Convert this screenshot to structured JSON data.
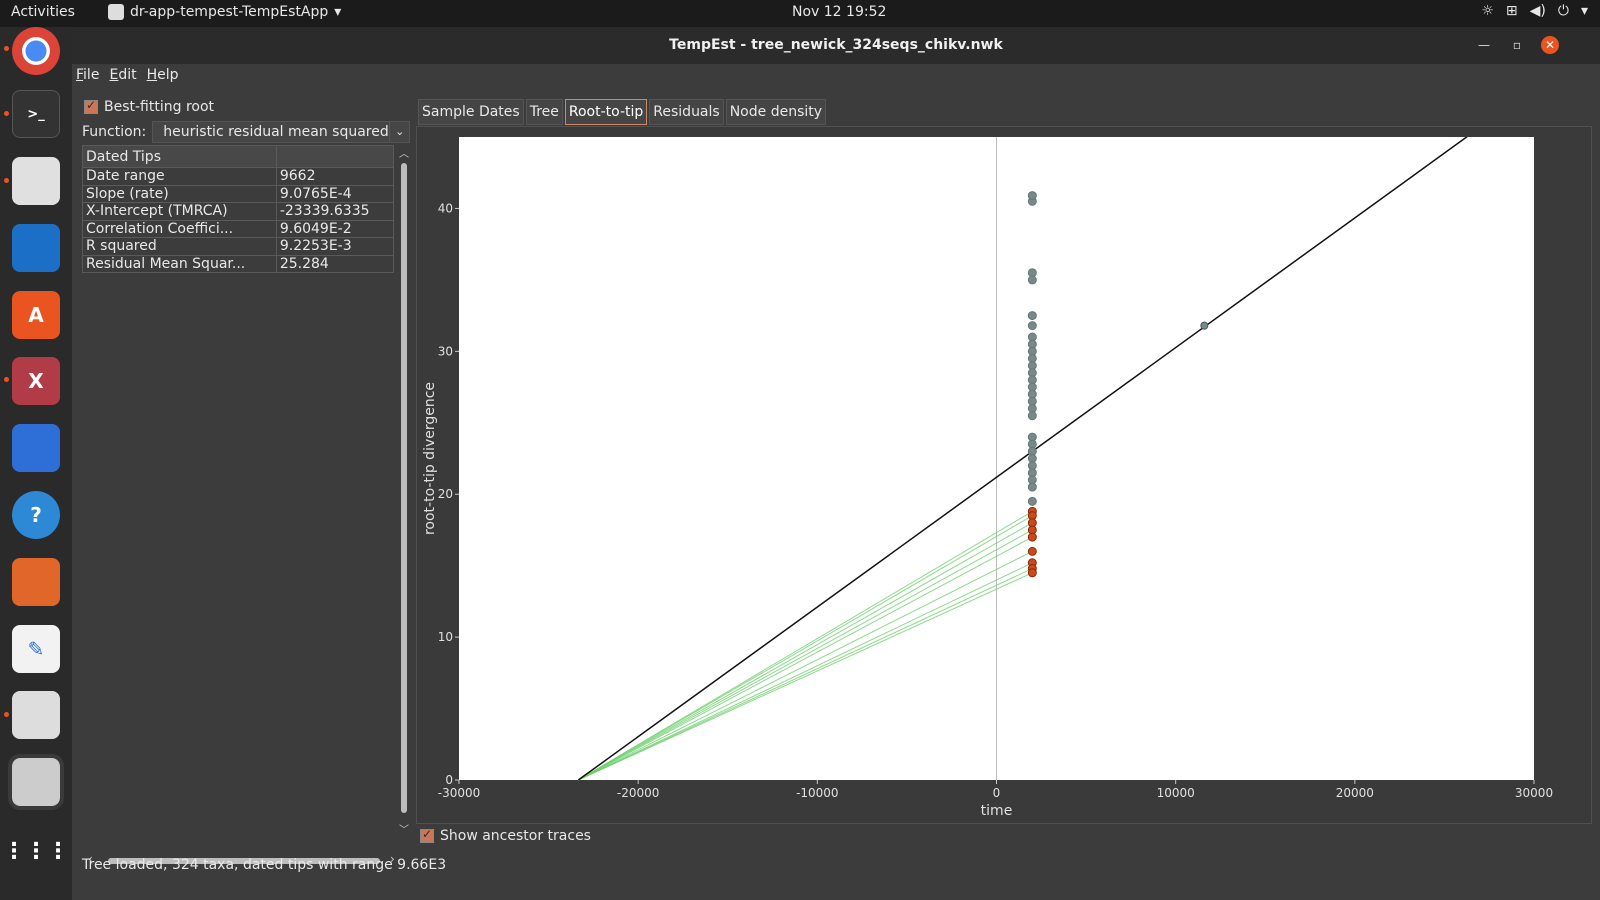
{
  "topbar": {
    "activities": "Activities",
    "app_name": "dr-app-tempest-TempEstApp",
    "clock": "Nov 12  19:52"
  },
  "window": {
    "title": "TempEst - tree_newick_324seqs_chikv.nwk"
  },
  "menu": [
    "File",
    "Edit",
    "Help"
  ],
  "left": {
    "best_fitting_label": "Best-fitting root",
    "function_label": "Function:",
    "function_value": "heuristic residual mean squared",
    "table_header": [
      "Dated Tips",
      ""
    ],
    "rows": [
      {
        "k": "Date range",
        "v": "9662"
      },
      {
        "k": "Slope (rate)",
        "v": "9.0765E-4"
      },
      {
        "k": "X-Intercept (TMRCA)",
        "v": "-23339.6335"
      },
      {
        "k": "Correlation Coeffici...",
        "v": "9.6049E-2"
      },
      {
        "k": "R squared",
        "v": "9.2253E-3"
      },
      {
        "k": "Residual Mean Squar...",
        "v": "25.284"
      }
    ]
  },
  "tabs": [
    "Sample Dates",
    "Tree",
    "Root-to-tip",
    "Residuals",
    "Node density"
  ],
  "active_tab": "Root-to-tip",
  "ancestor_label": "Show ancestor traces",
  "status": "Tree loaded, 324 taxa, dated tips with range 9.66E3",
  "colors": {
    "accent": "#e95420",
    "point_grey": "#778a8a",
    "point_red": "#cc4a1a",
    "trace_green": "#6fcf6f"
  },
  "chart_data": {
    "type": "scatter",
    "xlabel": "time",
    "ylabel": "root-to-tip divergence",
    "xlim": [
      -30000,
      30000
    ],
    "ylim": [
      0,
      45
    ],
    "xticks": [
      -30000,
      -20000,
      -10000,
      0,
      10000,
      20000,
      30000
    ],
    "yticks": [
      0,
      10,
      20,
      30,
      40
    ],
    "regression": {
      "x0": -23339.6335,
      "slope": 0.00090765
    },
    "grey_points": {
      "x": 2000,
      "y": [
        40.5,
        40.9,
        35.5,
        35.0,
        32.5,
        31.8,
        31.0,
        30.5,
        30.0,
        29.5,
        29.0,
        28.5,
        28.0,
        27.5,
        27.0,
        26.5,
        26.0,
        25.5,
        24.0,
        23.5,
        23.0,
        22.5,
        22.0,
        21.5,
        21.0,
        20.5,
        19.5
      ]
    },
    "red_points": {
      "x": 2000,
      "y": [
        18.8,
        18.5,
        18.0,
        17.5,
        17.0,
        16.0,
        15.2,
        14.8,
        14.5
      ]
    },
    "outlier": {
      "x": 11600,
      "y": 31.8
    },
    "ancestor_traces_to": [
      18.8,
      18.5,
      18.0,
      17.5,
      17.0,
      16.0,
      15.2,
      14.8,
      14.5
    ]
  }
}
